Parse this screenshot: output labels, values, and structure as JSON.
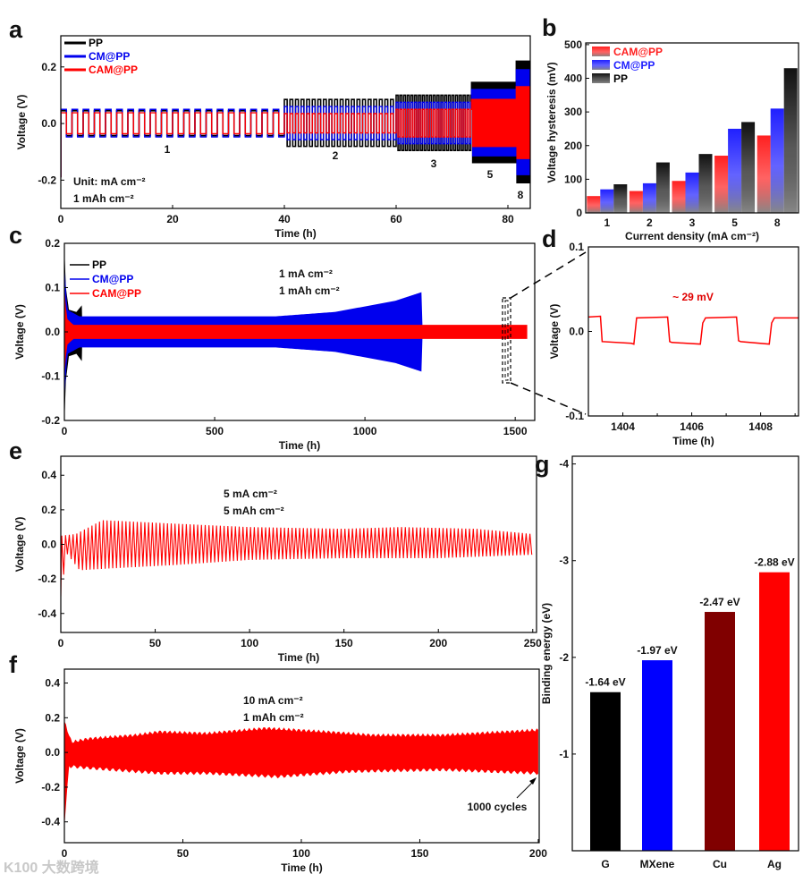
{
  "figure": {
    "panel_letters": [
      "a",
      "b",
      "c",
      "d",
      "e",
      "f",
      "g"
    ],
    "watermark": "K100 大数跨境"
  },
  "chart_data": [
    {
      "id": "a",
      "type": "line",
      "xlabel": "Time (h)",
      "ylabel": "Voltage (V)",
      "xlim": [
        0,
        84
      ],
      "ylim": [
        -0.3,
        0.31
      ],
      "xticks": [
        "0",
        "20",
        "40",
        "60",
        "80"
      ],
      "xtick_values": [
        0,
        20,
        40,
        60,
        80
      ],
      "yticks": [
        "-0.2",
        "0.0",
        "0.2"
      ],
      "ytick_values": [
        -0.2,
        0,
        0.2
      ],
      "legend": [
        "PP",
        "CM@PP",
        "CAM@PP"
      ],
      "legend_placement": "top-left",
      "annotations": {
        "unit": "Unit: mA cm⁻²",
        "capacity": "1 mAh cm⁻²",
        "rates": [
          "1",
          "2",
          "3",
          "5",
          "8"
        ]
      },
      "series": [
        {
          "name": "PP",
          "color": "#000000",
          "segments": [
            {
              "t": [
                0,
                40
              ],
              "period_h": 2,
              "amp": 0.045
            },
            {
              "t": [
                40,
                60
              ],
              "period_h": 1,
              "amp": 0.085
            },
            {
              "t": [
                60,
                73.5
              ],
              "period_h": 0.667,
              "amp": 0.1
            },
            {
              "t": [
                73.5,
                81.5
              ],
              "period_h": 0.4,
              "amp": 0.145
            },
            {
              "t": [
                81.5,
                84
              ],
              "period_h": 0.25,
              "amp": 0.22
            }
          ]
        },
        {
          "name": "CM@PP",
          "color": "#0000ee",
          "segments": [
            {
              "t": [
                0,
                40
              ],
              "period_h": 2,
              "amp": 0.05
            },
            {
              "t": [
                40,
                60
              ],
              "period_h": 1,
              "amp": 0.06
            },
            {
              "t": [
                60,
                73.5
              ],
              "period_h": 0.667,
              "amp": 0.075
            },
            {
              "t": [
                73.5,
                81.5
              ],
              "period_h": 0.4,
              "amp": 0.12
            },
            {
              "t": [
                81.5,
                84
              ],
              "period_h": 0.25,
              "amp": 0.19
            }
          ]
        },
        {
          "name": "CAM@PP",
          "color": "#ff0000",
          "segments": [
            {
              "t": [
                0,
                40
              ],
              "period_h": 2,
              "amp": 0.038
            },
            {
              "t": [
                40,
                60
              ],
              "period_h": 1,
              "amp": 0.035
            },
            {
              "t": [
                60,
                73.5
              ],
              "period_h": 0.667,
              "amp": 0.05
            },
            {
              "t": [
                73.5,
                81.5
              ],
              "period_h": 0.4,
              "amp": 0.085
            },
            {
              "t": [
                81.5,
                84
              ],
              "period_h": 0.25,
              "amp": 0.13
            }
          ]
        }
      ]
    },
    {
      "id": "b",
      "type": "bar",
      "xlabel": "Current density (mA cm⁻²)",
      "ylabel": "Voltage hysteresis (mV)",
      "categories": [
        "1",
        "2",
        "3",
        "5",
        "8"
      ],
      "ylim": [
        0,
        505
      ],
      "yticks": [
        "0",
        "100",
        "200",
        "300",
        "400",
        "500"
      ],
      "ytick_values": [
        0,
        100,
        200,
        300,
        400,
        500
      ],
      "legend_placement": "top-left",
      "series": [
        {
          "name": "CAM@PP",
          "color": "#ff2020",
          "values": [
            50,
            65,
            95,
            170,
            230
          ]
        },
        {
          "name": "CM@PP",
          "color": "#2020ff",
          "values": [
            70,
            88,
            120,
            250,
            310
          ]
        },
        {
          "name": "PP",
          "color": "#111111",
          "values": [
            85,
            150,
            175,
            270,
            430
          ]
        }
      ]
    },
    {
      "id": "c",
      "type": "area",
      "xlabel": "Time (h)",
      "ylabel": "Voltage (V)",
      "xlim": [
        0,
        1565
      ],
      "ylim": [
        -0.2,
        0.2
      ],
      "xticks": [
        "0",
        "500",
        "1000",
        "1500"
      ],
      "xtick_values": [
        0,
        500,
        1000,
        1500
      ],
      "yticks": [
        "-0.2",
        "-0.1",
        "0.0",
        "0.1",
        "0.2"
      ],
      "ytick_values": [
        -0.2,
        -0.1,
        0,
        0.1,
        0.2
      ],
      "legend": [
        "PP",
        "CM@PP",
        "CAM@PP"
      ],
      "legend_placement": "top-left",
      "annotations": {
        "rate": "1 mA cm⁻²",
        "capacity": "1 mAh cm⁻²"
      },
      "series": [
        {
          "name": "PP",
          "color": "#000000",
          "envelope": [
            [
              0,
              0.19
            ],
            [
              5,
              0.1
            ],
            [
              15,
              0.05
            ],
            [
              40,
              0.045
            ],
            [
              58,
              0.06
            ],
            [
              60,
              0
            ]
          ]
        },
        {
          "name": "CM@PP",
          "color": "#0000ee",
          "envelope": [
            [
              0,
              0.15
            ],
            [
              10,
              0.05
            ],
            [
              50,
              0.035
            ],
            [
              700,
              0.035
            ],
            [
              900,
              0.045
            ],
            [
              1100,
              0.07
            ],
            [
              1190,
              0.09
            ],
            [
              1192,
              0
            ]
          ]
        },
        {
          "name": "CAM@PP",
          "color": "#ff0000",
          "envelope": [
            [
              0,
              0.1
            ],
            [
              8,
              0.03
            ],
            [
              30,
              0.016
            ],
            [
              1540,
              0.016
            ]
          ]
        }
      ]
    },
    {
      "id": "d",
      "type": "line",
      "xlabel": "Time (h)",
      "ylabel": "Voltage (V)",
      "xlim": [
        1403,
        1409.1
      ],
      "ylim": [
        -0.1,
        0.1
      ],
      "xticks": [
        "1404",
        "1406",
        "1408"
      ],
      "xtick_values": [
        1404,
        1406,
        1408
      ],
      "yticks": [
        "-0.1",
        "0.0",
        "0.1"
      ],
      "ytick_values": [
        -0.1,
        0,
        0.1
      ],
      "annotations": {
        "hysteresis": "~ 29 mV"
      },
      "series": [
        {
          "name": "CAM@PP",
          "color": "#ff0000",
          "x": [
            1403,
            1403.35,
            1403.4,
            1404.25,
            1404.32,
            1404.4,
            1405.3,
            1405.36,
            1405.42,
            1406.25,
            1406.32,
            1406.4,
            1407.3,
            1407.36,
            1407.42,
            1408.25,
            1408.32,
            1408.4,
            1409.1
          ],
          "y": [
            0.017,
            0.018,
            -0.012,
            -0.014,
            -0.015,
            0.016,
            0.017,
            -0.012,
            -0.013,
            -0.015,
            0.01,
            0.016,
            0.017,
            -0.011,
            -0.012,
            -0.015,
            0.01,
            0.016,
            0.016
          ]
        }
      ]
    },
    {
      "id": "e",
      "type": "line",
      "xlabel": "Time (h)",
      "ylabel": "Voltage (V)",
      "xlim": [
        0,
        252
      ],
      "ylim": [
        -0.51,
        0.51
      ],
      "xticks": [
        "0",
        "50",
        "100",
        "150",
        "200",
        "250"
      ],
      "xtick_values": [
        0,
        50,
        100,
        150,
        200,
        250
      ],
      "yticks": [
        "-0.4",
        "-0.2",
        "0.0",
        "0.2",
        "0.4"
      ],
      "ytick_values": [
        -0.4,
        -0.2,
        0,
        0.2,
        0.4
      ],
      "annotations": {
        "rate": "5 mA cm⁻²",
        "capacity": "5 mAh cm⁻²"
      },
      "series": [
        {
          "name": "CAM@PP",
          "color": "#ff0000",
          "period_h": 2,
          "upper": [
            [
              0,
              0.05
            ],
            [
              8,
              0.06
            ],
            [
              15,
              0.1
            ],
            [
              22,
              0.14
            ],
            [
              60,
              0.12
            ],
            [
              100,
              0.1
            ],
            [
              150,
              0.09
            ],
            [
              180,
              0.1
            ],
            [
              220,
              0.09
            ],
            [
              250,
              0.06
            ]
          ],
          "lower": [
            [
              0,
              -0.3
            ],
            [
              3,
              -0.05
            ],
            [
              10,
              -0.15
            ],
            [
              25,
              -0.14
            ],
            [
              60,
              -0.12
            ],
            [
              100,
              -0.09
            ],
            [
              150,
              -0.08
            ],
            [
              200,
              -0.08
            ],
            [
              250,
              -0.06
            ]
          ]
        }
      ]
    },
    {
      "id": "f",
      "type": "area",
      "xlabel": "Time (h)",
      "ylabel": "Voltage (V)",
      "xlim": [
        0,
        200.4
      ],
      "ylim": [
        -0.52,
        0.48
      ],
      "xticks": [
        "0",
        "50",
        "100",
        "150",
        "200"
      ],
      "xtick_values": [
        0,
        50,
        100,
        150,
        200
      ],
      "yticks": [
        "-0.4",
        "-0.2",
        "0.0",
        "0.2",
        "0.4"
      ],
      "ytick_values": [
        -0.4,
        -0.2,
        0,
        0.2,
        0.4
      ],
      "annotations": {
        "rate": "10 mA cm⁻²",
        "capacity": "1 mAh cm⁻²",
        "cycles": "1000 cycles"
      },
      "series": [
        {
          "name": "CAM@PP",
          "color": "#ff0000",
          "upper": [
            [
              0,
              0.18
            ],
            [
              3,
              0.06
            ],
            [
              10,
              0.08
            ],
            [
              30,
              0.1
            ],
            [
              40,
              0.12
            ],
            [
              60,
              0.11
            ],
            [
              85,
              0.14
            ],
            [
              110,
              0.12
            ],
            [
              130,
              0.1
            ],
            [
              160,
              0.1
            ],
            [
              200,
              0.13
            ]
          ],
          "lower": [
            [
              0,
              -0.42
            ],
            [
              2,
              -0.08
            ],
            [
              10,
              -0.09
            ],
            [
              40,
              -0.12
            ],
            [
              60,
              -0.12
            ],
            [
              90,
              -0.14
            ],
            [
              120,
              -0.11
            ],
            [
              160,
              -0.1
            ],
            [
              200,
              -0.12
            ]
          ]
        }
      ]
    },
    {
      "id": "g",
      "type": "bar",
      "xlabel": "",
      "ylabel": "Binding energy (eV)",
      "categories": [
        "G",
        "MXene",
        "Cu",
        "Ag"
      ],
      "values": [
        -1.64,
        -1.97,
        -2.47,
        -2.88
      ],
      "labels": [
        "-1.64 eV",
        "-1.97 eV",
        "-2.47 eV",
        "-2.88 eV"
      ],
      "colors": [
        "#000000",
        "#0000ff",
        "#800000",
        "#ff0000"
      ],
      "ylim": [
        0,
        -4.08
      ],
      "yticks": [
        "-1",
        "-2",
        "-3",
        "-4"
      ],
      "ytick_values": [
        -1,
        -2,
        -3,
        -4
      ]
    }
  ]
}
